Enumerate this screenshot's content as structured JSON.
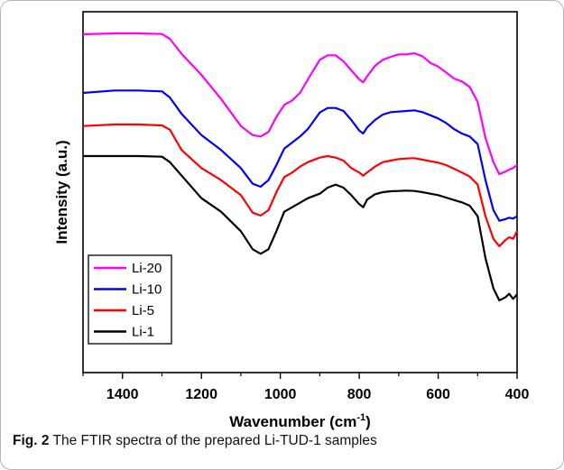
{
  "caption": {
    "label": "Fig. 2",
    "text": "The FTIR spectra of the prepared Li-TUD-1 samples"
  },
  "chart_data": {
    "type": "line",
    "title": "",
    "xlabel": "Wavenumber (cm-1)",
    "xlabel_parts": {
      "main": "Wavenumber (cm",
      "sup": "-1",
      "close": ")"
    },
    "ylabel": "Intensity (a.u.)",
    "xlim": [
      1500,
      400
    ],
    "x_reversed": true,
    "xticks": [
      1400,
      1200,
      1000,
      800,
      600,
      400
    ],
    "y_tick_labels": false,
    "ylim": [
      0,
      1.2
    ],
    "legend_position": "bottom-left",
    "series": [
      {
        "name": "Li-20",
        "color": "#ff00ff",
        "x": [
          1500,
          1420,
          1360,
          1300,
          1280,
          1250,
          1200,
          1150,
          1100,
          1070,
          1050,
          1030,
          1010,
          990,
          970,
          950,
          930,
          900,
          880,
          860,
          840,
          820,
          800,
          790,
          780,
          760,
          740,
          720,
          700,
          680,
          660,
          640,
          620,
          600,
          580,
          560,
          540,
          520,
          500,
          480,
          460,
          445,
          430,
          420,
          410,
          400
        ],
        "y": [
          1.125,
          1.128,
          1.128,
          1.126,
          1.11,
          1.06,
          0.99,
          0.91,
          0.82,
          0.79,
          0.785,
          0.8,
          0.85,
          0.89,
          0.905,
          0.93,
          0.975,
          1.04,
          1.055,
          1.055,
          1.035,
          1.005,
          0.975,
          0.965,
          0.985,
          1.02,
          1.04,
          1.05,
          1.058,
          1.058,
          1.062,
          1.052,
          1.03,
          1.018,
          0.998,
          0.978,
          0.968,
          0.95,
          0.9,
          0.78,
          0.7,
          0.66,
          0.668,
          0.675,
          0.68,
          0.69
        ]
      },
      {
        "name": "Li-10",
        "color": "#0000ff",
        "x": [
          1500,
          1420,
          1360,
          1300,
          1280,
          1250,
          1200,
          1150,
          1100,
          1070,
          1050,
          1030,
          1010,
          990,
          970,
          950,
          930,
          900,
          880,
          860,
          840,
          820,
          800,
          790,
          780,
          760,
          740,
          720,
          700,
          680,
          660,
          640,
          620,
          600,
          580,
          560,
          540,
          520,
          500,
          480,
          460,
          445,
          430,
          420,
          410,
          400
        ],
        "y": [
          0.93,
          0.938,
          0.938,
          0.935,
          0.915,
          0.86,
          0.79,
          0.74,
          0.68,
          0.628,
          0.618,
          0.64,
          0.69,
          0.745,
          0.765,
          0.785,
          0.81,
          0.865,
          0.88,
          0.88,
          0.87,
          0.84,
          0.805,
          0.795,
          0.815,
          0.84,
          0.858,
          0.866,
          0.868,
          0.87,
          0.872,
          0.866,
          0.856,
          0.845,
          0.83,
          0.81,
          0.795,
          0.785,
          0.76,
          0.64,
          0.54,
          0.505,
          0.51,
          0.515,
          0.512,
          0.52
        ]
      },
      {
        "name": "Li-5",
        "color": "#ff0000",
        "x": [
          1500,
          1420,
          1360,
          1300,
          1280,
          1250,
          1200,
          1150,
          1100,
          1070,
          1050,
          1030,
          1010,
          990,
          970,
          950,
          930,
          900,
          880,
          860,
          840,
          820,
          800,
          790,
          780,
          760,
          740,
          720,
          700,
          680,
          660,
          640,
          620,
          600,
          580,
          560,
          540,
          520,
          500,
          480,
          460,
          445,
          430,
          420,
          410,
          400
        ],
        "y": [
          0.82,
          0.825,
          0.825,
          0.822,
          0.808,
          0.74,
          0.68,
          0.64,
          0.59,
          0.532,
          0.522,
          0.54,
          0.6,
          0.65,
          0.665,
          0.685,
          0.7,
          0.715,
          0.72,
          0.715,
          0.705,
          0.68,
          0.665,
          0.655,
          0.665,
          0.685,
          0.7,
          0.705,
          0.71,
          0.712,
          0.713,
          0.708,
          0.703,
          0.698,
          0.69,
          0.678,
          0.665,
          0.652,
          0.625,
          0.52,
          0.445,
          0.42,
          0.44,
          0.45,
          0.445,
          0.47
        ]
      },
      {
        "name": "Li-1",
        "color": "#000000",
        "x": [
          1500,
          1420,
          1360,
          1300,
          1280,
          1250,
          1200,
          1150,
          1100,
          1070,
          1050,
          1030,
          1010,
          990,
          970,
          950,
          930,
          900,
          880,
          860,
          840,
          820,
          800,
          790,
          780,
          760,
          740,
          720,
          700,
          680,
          660,
          640,
          620,
          600,
          580,
          560,
          540,
          520,
          500,
          480,
          460,
          445,
          430,
          420,
          410,
          400
        ],
        "y": [
          0.72,
          0.72,
          0.72,
          0.718,
          0.7,
          0.655,
          0.58,
          0.535,
          0.47,
          0.41,
          0.395,
          0.41,
          0.47,
          0.535,
          0.55,
          0.565,
          0.58,
          0.595,
          0.615,
          0.625,
          0.615,
          0.59,
          0.56,
          0.55,
          0.575,
          0.593,
          0.6,
          0.603,
          0.604,
          0.605,
          0.604,
          0.6,
          0.595,
          0.59,
          0.582,
          0.574,
          0.566,
          0.555,
          0.52,
          0.38,
          0.28,
          0.24,
          0.25,
          0.262,
          0.245,
          0.26
        ]
      }
    ]
  }
}
